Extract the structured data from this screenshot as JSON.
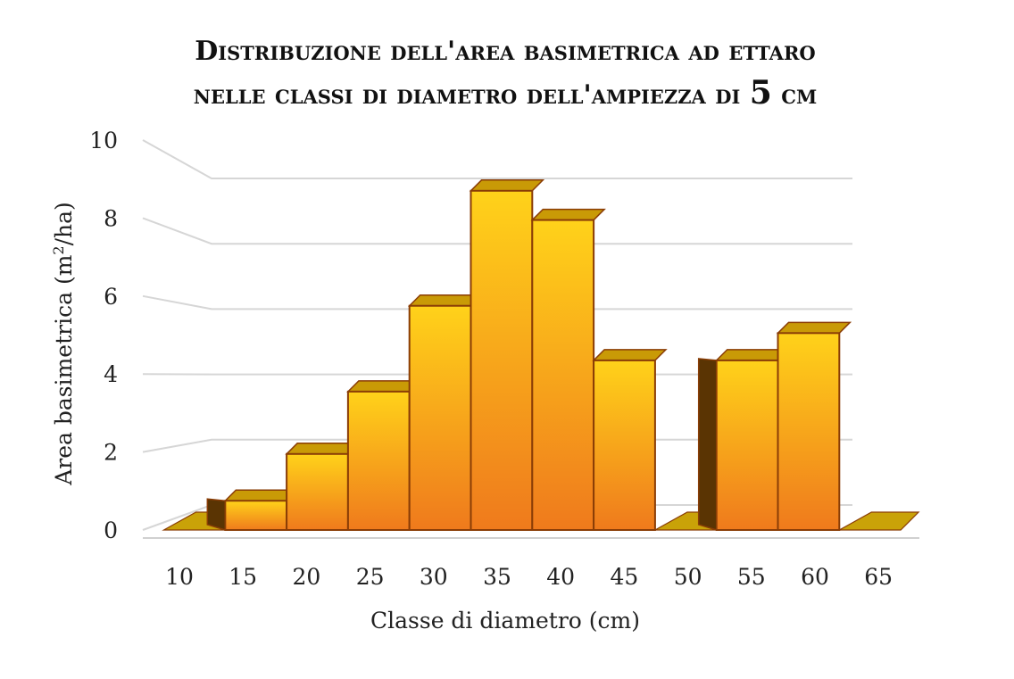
{
  "colors": {
    "bar_top": "#ffd21a",
    "bar_bottom": "#ef7a1c",
    "bar_edge": "#8a3d06",
    "bar_depth": "#c99a06",
    "bar_side_dark": "#5a3403",
    "floor": "#c9a208",
    "grid": "#d6d6d6"
  },
  "chart_data": {
    "type": "bar",
    "title_line1": "Distribuzione dell'area basimetrica ad ettaro",
    "title_line2_prefix": "nelle classi di diametro dell'ampiezza di ",
    "title_line2_number": "5",
    "title_line2_suffix": " cm",
    "xlabel": "Classe di diametro (cm)",
    "ylabel_prefix": "Area basimetrica (m",
    "ylabel_sup": "2",
    "ylabel_suffix": "/ha)",
    "categories": [
      "10",
      "15",
      "20",
      "25",
      "30",
      "35",
      "40",
      "45",
      "50",
      "55",
      "60",
      "65"
    ],
    "values": [
      0.05,
      0.75,
      1.95,
      3.55,
      5.75,
      8.7,
      7.95,
      4.35,
      0.0,
      4.35,
      5.05,
      0.0
    ],
    "yticks": [
      "0",
      "2",
      "4",
      "6",
      "8",
      "10"
    ],
    "ylim": [
      0,
      10
    ],
    "grid": true,
    "legend": "none"
  }
}
